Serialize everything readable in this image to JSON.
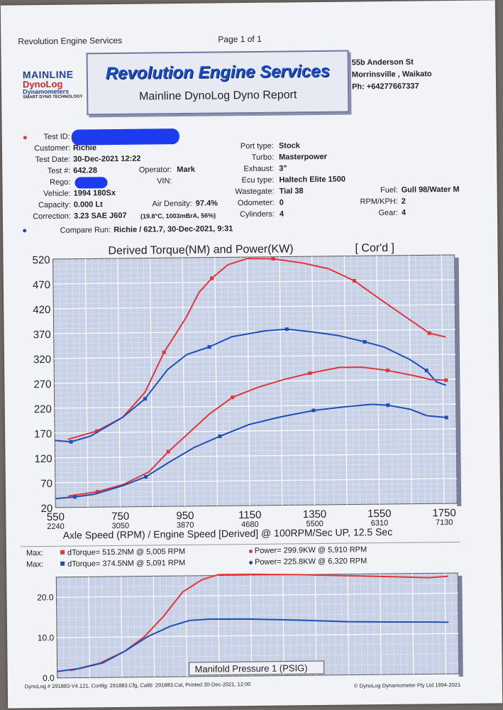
{
  "page_header": {
    "left": "Revolution Engine Services",
    "center": "Page 1 of 1"
  },
  "logo": {
    "line1": "MAINLINE",
    "line2": "DynoLog",
    "line3": "Dynamometers",
    "line4": "SMART DYNO TECHNOLOGY"
  },
  "header": {
    "title": "Revolution Engine Services",
    "subtitle": "Mainline DynoLog Dyno Report"
  },
  "address": {
    "line1": "55b Anderson St",
    "line2": "Morrinsville , Waikato",
    "line3": "Ph: +64277667337"
  },
  "colors": {
    "red": "#e0363c",
    "blue": "#1f4fb5",
    "plot_bg": "#c9d1e6"
  },
  "details": {
    "test_id_label": "Test ID:",
    "customer_label": "Customer:",
    "customer": "Richie",
    "test_date_label": "Test Date:",
    "test_date": "30-Dec-2021 12:22",
    "test_no_label": "Test #:",
    "test_no": "642.28",
    "operator_label": "Operator:",
    "operator": "Mark",
    "rego_label": "Rego:",
    "vin_label": "VIN:",
    "vehicle_label": "Vehicle:",
    "vehicle": "1994 180Sx",
    "capacity_label": "Capacity:",
    "capacity": "0.000 Lt",
    "air_density_label": "Air Density:",
    "air_density": "97.4%",
    "correction_label": "Correction:",
    "correction": "3.23 SAE J607",
    "correction_detail": "(19.8°C, 1003mBrA, 56%)",
    "port_type_label": "Port type:",
    "port_type": "Stock",
    "turbo_label": "Turbo:",
    "turbo": "Masterpower",
    "exhaust_label": "Exhaust:",
    "exhaust": "3\"",
    "ecu_label": "Ecu type:",
    "ecu": "Haltech Elite 1500",
    "wastegate_label": "Wastegate:",
    "wastegate": "Tial 38",
    "odometer_label": "Odometer:",
    "odometer": "0",
    "cylinders_label": "Cylinders:",
    "cylinders": "4",
    "fuel_label": "Fuel:",
    "fuel": "Gull 98/Water M",
    "rpm_kph_label": "RPM/KPH:",
    "rpm_kph": "2",
    "gear_label": "Gear:",
    "gear": "4",
    "compare_label": "Compare Run:",
    "compare_run": "Richie / 621.7,   30-Dec-2021,   9:31"
  },
  "summary": {
    "row1_max": "Max:",
    "row1_torque": "dTorque= 515.2NM @ 5,005 RPM",
    "row1_power": "Power= 299.9KW @ 5,910 RPM",
    "row2_max": "Max:",
    "row2_torque": "dTorque= 374.5NM @ 5,091 RPM",
    "row2_power": "Power= 225.8KW @ 6,320 RPM"
  },
  "footer": {
    "left": "DynoLog # 291883-V4.121, Config: 291883.Cfg, Calib: 291883.Cal, Printed 30-Dec-2021, 12:00",
    "right": "© DynoLog Dynamometer Pty Ltd 1994-2021"
  },
  "chart_data": [
    {
      "type": "line",
      "title": "Derived Torque(NM) and Power(KW)",
      "title_note": "[ Cor'd ]",
      "xlabel": "Axle Speed (RPM) / Engine Speed [Derived] @ 100RPM/Sec UP, 12.5 Sec",
      "x_ticks": [
        "550",
        "750",
        "950",
        "1150",
        "1350",
        "1550",
        "1750"
      ],
      "x_ticks_secondary": [
        "2240",
        "3050",
        "3870",
        "4680",
        "5500",
        "6310",
        "7130"
      ],
      "xlim": [
        550,
        1790
      ],
      "ylim": [
        20,
        520
      ],
      "y_ticks": [
        "520",
        "470",
        "420",
        "370",
        "320",
        "270",
        "220",
        "170",
        "120",
        "70",
        "20"
      ],
      "grid": true,
      "series": [
        {
          "color": "red",
          "values": [
            [
              590,
              157
            ],
            [
              680,
              173
            ],
            [
              760,
              200
            ],
            [
              830,
              250
            ],
            [
              890,
              330
            ],
            [
              960,
              400
            ],
            [
              1000,
              450
            ],
            [
              1040,
              478
            ],
            [
              1090,
              505
            ],
            [
              1150,
              517
            ],
            [
              1230,
              516
            ],
            [
              1320,
              507
            ],
            [
              1400,
              495
            ],
            [
              1480,
              470
            ],
            [
              1560,
              432
            ],
            [
              1640,
              395
            ],
            [
              1710,
              363
            ],
            [
              1760,
              355
            ]
          ]
        },
        {
          "color": "blue",
          "values": [
            [
              550,
              155
            ],
            [
              600,
              152
            ],
            [
              660,
              163
            ],
            [
              760,
              200
            ],
            [
              830,
              237
            ],
            [
              900,
              295
            ],
            [
              960,
              325
            ],
            [
              1030,
              340
            ],
            [
              1100,
              360
            ],
            [
              1200,
              371
            ],
            [
              1270,
              374
            ],
            [
              1350,
              368
            ],
            [
              1430,
              360
            ],
            [
              1510,
              347
            ],
            [
              1570,
              336
            ],
            [
              1650,
              310
            ],
            [
              1700,
              288
            ],
            [
              1730,
              265
            ],
            [
              1760,
              258
            ]
          ]
        },
        {
          "color": "red",
          "values": [
            [
              590,
              43
            ],
            [
              680,
              51
            ],
            [
              760,
              65
            ],
            [
              840,
              90
            ],
            [
              900,
              130
            ],
            [
              960,
              165
            ],
            [
              1030,
              206
            ],
            [
              1100,
              238
            ],
            [
              1180,
              258
            ],
            [
              1260,
              273
            ],
            [
              1340,
              285
            ],
            [
              1430,
              296
            ],
            [
              1500,
              296
            ],
            [
              1580,
              289
            ],
            [
              1660,
              278
            ],
            [
              1710,
              270
            ],
            [
              1760,
              268
            ]
          ]
        },
        {
          "color": "blue",
          "values": [
            [
              550,
              38
            ],
            [
              610,
              41
            ],
            [
              670,
              46
            ],
            [
              760,
              63
            ],
            [
              830,
              80
            ],
            [
              900,
              108
            ],
            [
              980,
              138
            ],
            [
              1060,
              160
            ],
            [
              1150,
              183
            ],
            [
              1250,
              198
            ],
            [
              1350,
              210
            ],
            [
              1450,
              217
            ],
            [
              1530,
              221
            ],
            [
              1580,
              219
            ],
            [
              1650,
              210
            ],
            [
              1700,
              197
            ],
            [
              1760,
              193
            ]
          ]
        }
      ]
    },
    {
      "type": "line",
      "title": "Manifold Pressure 1 (PSIG)",
      "xlim": [
        550,
        1790
      ],
      "ylim": [
        0,
        25
      ],
      "y_ticks": [
        "20.0",
        "10.0",
        "0.0"
      ],
      "grid": true,
      "series": [
        {
          "color": "red",
          "values": [
            [
              590,
              1.8
            ],
            [
              680,
              3.5
            ],
            [
              760,
              6.5
            ],
            [
              820,
              10
            ],
            [
              880,
              15
            ],
            [
              940,
              21
            ],
            [
              1000,
              24
            ],
            [
              1050,
              25.2
            ],
            [
              1150,
              25.2
            ],
            [
              1300,
              25
            ],
            [
              1450,
              24.6
            ],
            [
              1600,
              24.2
            ],
            [
              1700,
              23.9
            ],
            [
              1760,
              24.2
            ]
          ]
        },
        {
          "color": "blue",
          "values": [
            [
              550,
              1.6
            ],
            [
              620,
              2.3
            ],
            [
              690,
              3.6
            ],
            [
              760,
              6.5
            ],
            [
              830,
              10
            ],
            [
              900,
              12.5
            ],
            [
              960,
              13.9
            ],
            [
              1020,
              14.2
            ],
            [
              1150,
              14.1
            ],
            [
              1300,
              13.7
            ],
            [
              1450,
              13.2
            ],
            [
              1600,
              13
            ],
            [
              1700,
              12.9
            ],
            [
              1760,
              12.8
            ]
          ]
        }
      ]
    }
  ]
}
